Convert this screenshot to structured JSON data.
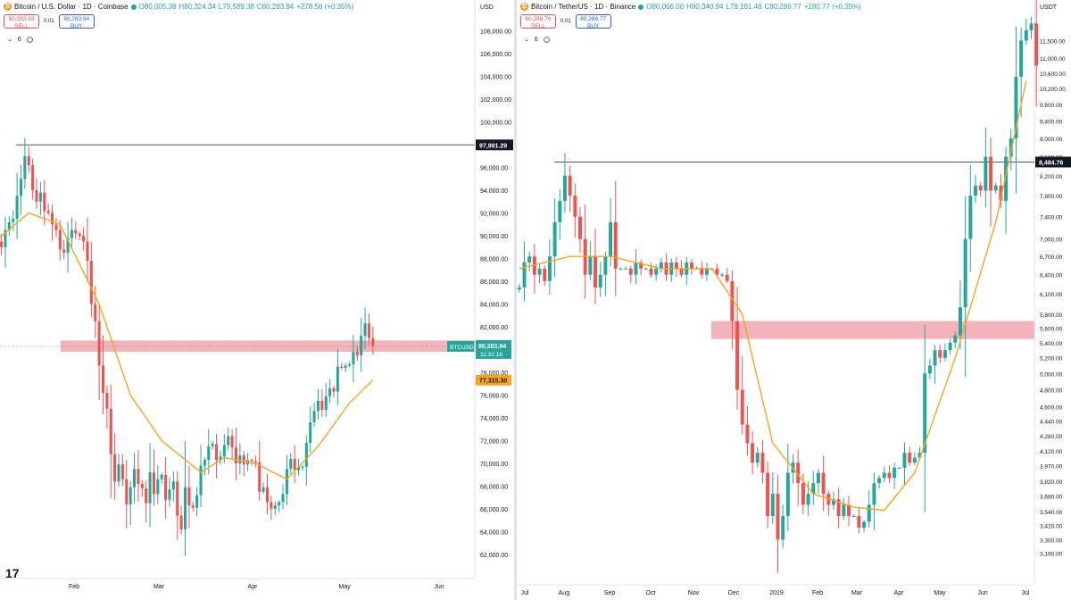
{
  "colors": {
    "up": "#26a69a",
    "down": "#ef5350",
    "ma": "#f5a524",
    "zone": "#f0a6ae",
    "hline": "#555555"
  },
  "left": {
    "title": "Bitcoin / U.S. Dollar · 1D · Coinbase",
    "ohlc": {
      "o": "O80,005.38",
      "h": "H80,324.34",
      "l": "L79,589.38",
      "c": "C80,283.94",
      "chg": "+278.56 (+0.35%)"
    },
    "sell_price": "80,283.93",
    "sell_label": "SELL",
    "spread": "0.01",
    "buy_price": "80,283.94",
    "buy_label": "BUY",
    "indicator_count": "6",
    "currency": "USD",
    "symbol_tag": "BTCUSD",
    "last_price": "80,283.94",
    "countdown": "11:31:18",
    "ma_value": "77,315.30",
    "hline_value": "97,991.29",
    "logo": "17"
  },
  "right": {
    "title": "Bitcoin / TetherUS · 1D · Binance",
    "ohlc": {
      "o": "O80,006.00",
      "h": "H80,340.94",
      "l": "L79,181.48",
      "c": "C80,286.77",
      "chg": "+280.77 (+0.35%)"
    },
    "sell_price": "80,286.76",
    "sell_label": "SELL",
    "spread": "0.01",
    "buy_price": "80,286.77",
    "buy_label": "BUY",
    "indicator_count": "6",
    "currency": "USDT",
    "hline_value": "8,484.76"
  },
  "chart_data": [
    {
      "type": "candlestick",
      "title": "Bitcoin / U.S. Dollar · 1D · Coinbase",
      "ylim": [
        60500,
        109000
      ],
      "y_ticks": [
        62000,
        64000,
        66000,
        68000,
        70000,
        72000,
        74000,
        76000,
        78000,
        80000,
        82000,
        84000,
        86000,
        88000,
        90000,
        92000,
        94000,
        96000,
        98000,
        100000,
        102000,
        104000,
        106000,
        108000
      ],
      "y_tick_labels": [
        "62,000.00",
        "64,000.00",
        "66,000.00",
        "68,000.00",
        "70,000.00",
        "72,000.00",
        "74,000.00",
        "76,000.00",
        "78,000.00",
        "80,000.00",
        "82,000.00",
        "84,000.00",
        "86,000.00",
        "88,000.00",
        "90,000.00",
        "92,000.00",
        "94,000.00",
        "96,000.00",
        "98,000.00",
        "100,000.00",
        "102,000.00",
        "104,000.00",
        "106,000.00",
        "108,000.00"
      ],
      "x_tick_labels": [
        "Feb",
        "Mar",
        "Apr",
        "May",
        "Jun"
      ],
      "close": [
        89500,
        89000,
        90500,
        91200,
        91500,
        93500,
        95000,
        97000,
        96200,
        94000,
        93000,
        93800,
        92200,
        92000,
        91000,
        90500,
        88800,
        88500,
        89800,
        90500,
        90200,
        90000,
        89500,
        87800,
        84000,
        82500,
        78600,
        76200,
        74800,
        70800,
        68400,
        69900,
        68600,
        66400,
        67900,
        69500,
        68200,
        67800,
        66500,
        69200,
        67300,
        68600,
        69000,
        66800,
        67700,
        68400,
        65400,
        64200,
        67900,
        66300,
        66100,
        67200,
        69800,
        70300,
        71500,
        71700,
        70300,
        70600,
        71600,
        72400,
        71400,
        70000,
        70700,
        69900,
        70300,
        70200,
        70100,
        67500,
        67900,
        66600,
        66000,
        66300,
        66600,
        67300,
        69500,
        70400,
        69400,
        69700,
        69700,
        71800,
        73600,
        74600,
        75500,
        74700,
        75900,
        76600,
        76300,
        78500,
        78400,
        78600,
        78700,
        79800,
        79500,
        81200,
        82300,
        81000,
        80300
      ],
      "ma": [
        {
          "x": 0,
          "y": 89700
        },
        {
          "x": 8,
          "y": 92000
        },
        {
          "x": 16,
          "y": 91000
        },
        {
          "x": 26,
          "y": 84000
        },
        {
          "x": 34,
          "y": 76000
        },
        {
          "x": 42,
          "y": 72000
        },
        {
          "x": 52,
          "y": 69200
        },
        {
          "x": 58,
          "y": 70500
        },
        {
          "x": 66,
          "y": 70000
        },
        {
          "x": 74,
          "y": 68600
        },
        {
          "x": 82,
          "y": 71500
        },
        {
          "x": 90,
          "y": 75300
        },
        {
          "x": 96,
          "y": 77315
        }
      ],
      "hline": 97991.29,
      "zone": [
        79800,
        80800
      ],
      "last": 80283.94
    },
    {
      "type": "candlestick",
      "title": "Bitcoin / TetherUS · 1D · Binance",
      "scale": "log",
      "ylim": [
        3000,
        12500
      ],
      "y_ticks": [
        3190,
        3300,
        3420,
        3540,
        3680,
        3820,
        3970,
        4120,
        4280,
        4440,
        4600,
        4800,
        5000,
        5200,
        5400,
        5600,
        5800,
        6100,
        6400,
        6700,
        7000,
        7400,
        7800,
        8200,
        8600,
        9000,
        9400,
        9800,
        10200,
        10600,
        11000,
        11500
      ],
      "y_tick_labels": [
        "3,190.00",
        "3,300.00",
        "3,420.00",
        "3,540.00",
        "3,680.00",
        "3,820.00",
        "3,970.00",
        "4,120.00",
        "4,280.00",
        "4,440.00",
        "4,600.00",
        "4,800.00",
        "5,000.00",
        "5,200.00",
        "5,400.00",
        "5,600.00",
        "5,800.00",
        "6,100.00",
        "6,400.00",
        "6,700.00",
        "7,000.00",
        "7,400.00",
        "7,800.00",
        "8,200.00",
        "8,600.00",
        "9,000.00",
        "9,400.00",
        "9,800.00",
        "10,200.00",
        "10,600.00",
        "11,000.00",
        "11,500.00"
      ],
      "x_tick_labels": [
        "Jul",
        "Aug",
        "Sep",
        "Oct",
        "Nov",
        "Dec",
        "2019",
        "Feb",
        "Mar",
        "Apr",
        "May",
        "Jun",
        "Jul"
      ],
      "close": [
        6200,
        6600,
        6700,
        6400,
        6500,
        6300,
        6700,
        7300,
        7700,
        8200,
        7800,
        7400,
        7000,
        6400,
        6700,
        6200,
        6400,
        6700,
        7300,
        6500,
        6500,
        6500,
        6400,
        6600,
        6500,
        6500,
        6400,
        6500,
        6600,
        6400,
        6600,
        6500,
        6400,
        6600,
        6500,
        6500,
        6400,
        6500,
        6500,
        6400,
        6400,
        6300,
        5700,
        4800,
        4400,
        4200,
        4000,
        4100,
        3900,
        3500,
        3700,
        3300,
        3500,
        3900,
        4000,
        3800,
        3600,
        3700,
        3800,
        3900,
        3700,
        3600,
        3650,
        3500,
        3600,
        3500,
        3500,
        3400,
        3450,
        3600,
        3800,
        3850,
        3900,
        3850,
        3950,
        3950,
        4100,
        4000,
        4050,
        4100,
        5000,
        5100,
        5300,
        5200,
        5300,
        5400,
        5500,
        5900,
        7000,
        7800,
        8000,
        7900,
        8600,
        7900,
        8000,
        7700,
        8600,
        9000,
        10500,
        11500,
        11800,
        12000,
        10800
      ],
      "ma": [
        {
          "x": 0,
          "y": 6500
        },
        {
          "x": 10,
          "y": 6700
        },
        {
          "x": 18,
          "y": 6700
        },
        {
          "x": 28,
          "y": 6500
        },
        {
          "x": 38,
          "y": 6500
        },
        {
          "x": 44,
          "y": 5800
        },
        {
          "x": 50,
          "y": 4200
        },
        {
          "x": 58,
          "y": 3700
        },
        {
          "x": 66,
          "y": 3580
        },
        {
          "x": 72,
          "y": 3550
        },
        {
          "x": 78,
          "y": 3900
        },
        {
          "x": 86,
          "y": 5200
        },
        {
          "x": 94,
          "y": 7300
        },
        {
          "x": 100,
          "y": 10400
        }
      ],
      "hline": 8484.76,
      "zone": [
        5450,
        5700
      ]
    }
  ]
}
